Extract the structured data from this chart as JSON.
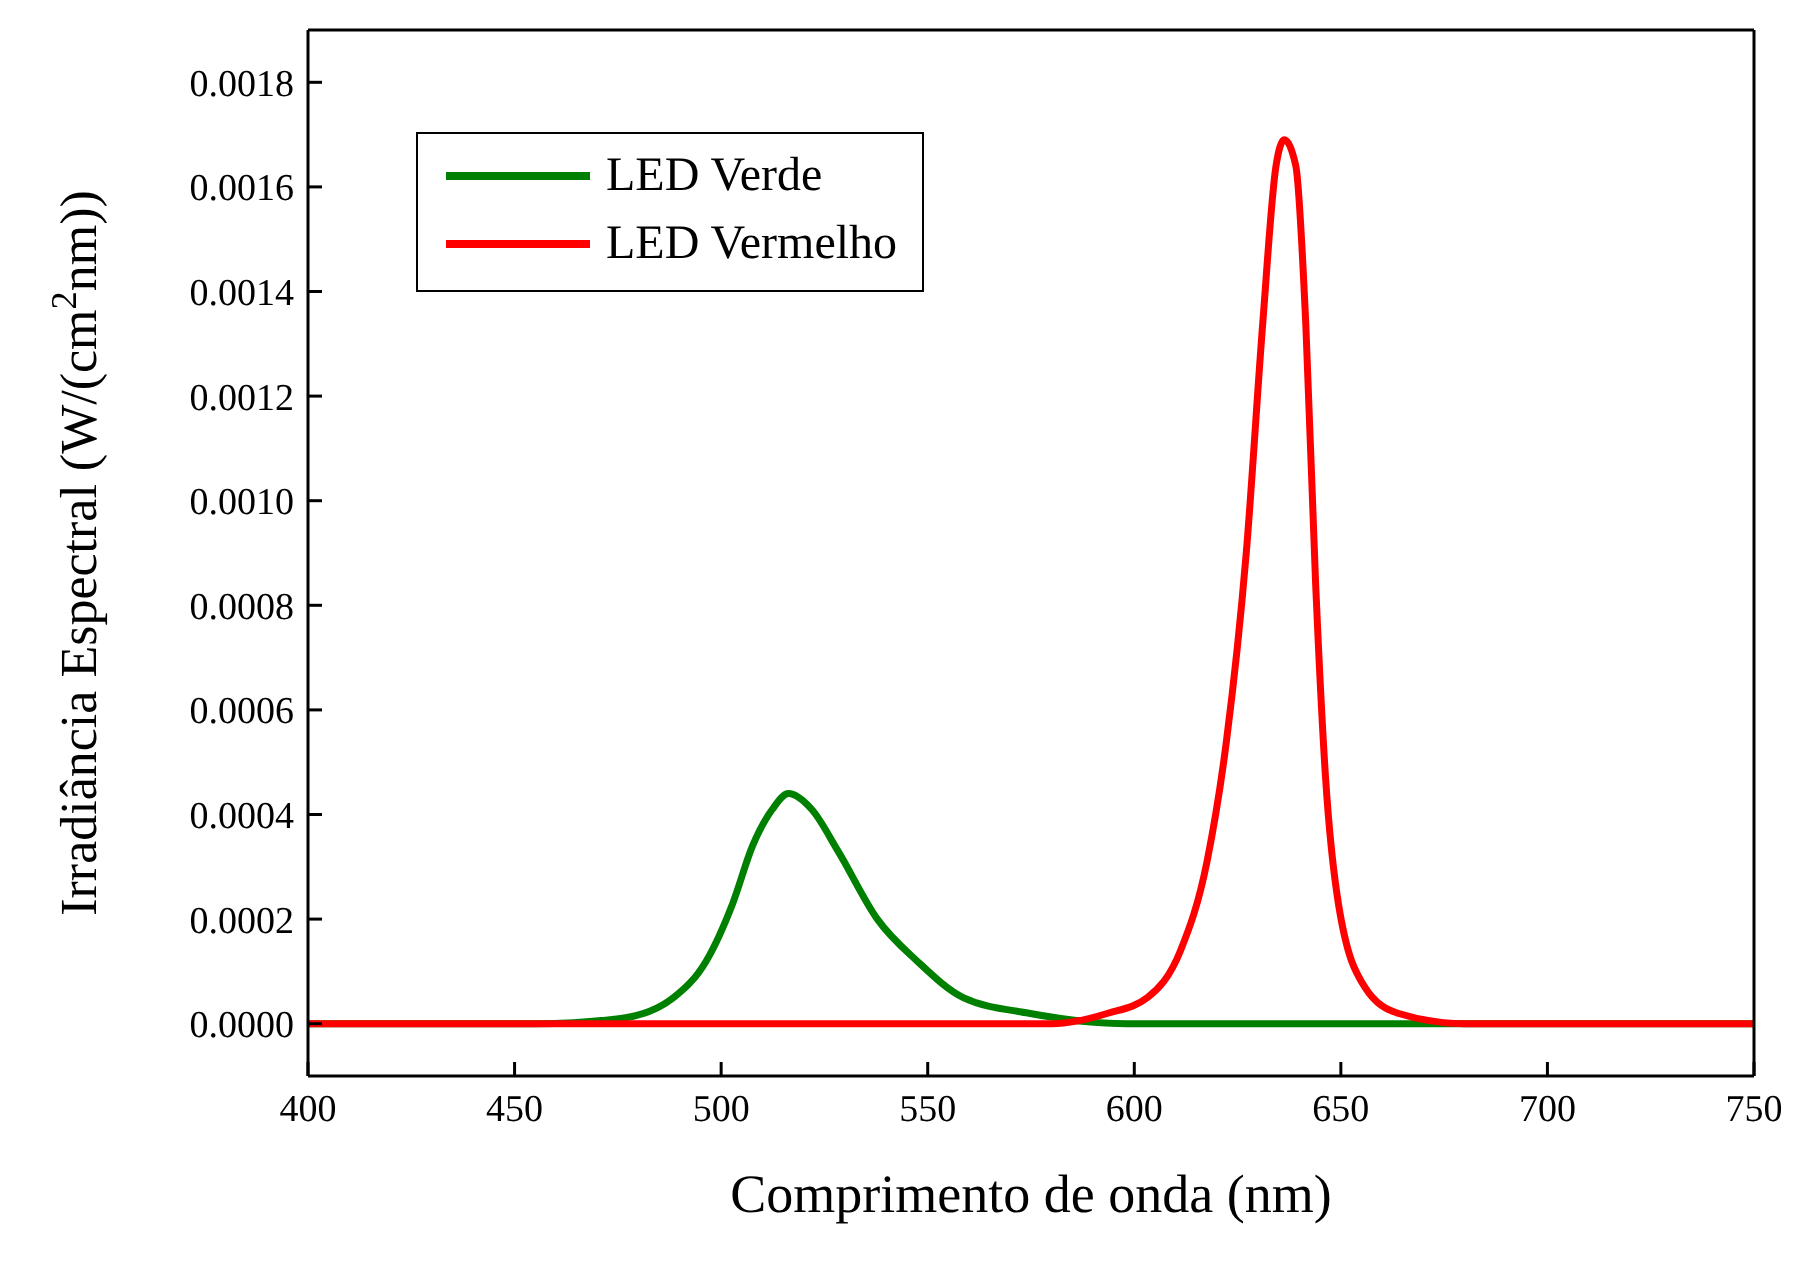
{
  "chart_data": {
    "type": "line",
    "xlabel": "Comprimento de onda (nm)",
    "ylabel": "Irradiância Espectral (W/(cm$^{2}$nm))",
    "xlim": [
      400,
      750
    ],
    "xticks": [
      400,
      450,
      500,
      550,
      600,
      650,
      700,
      750
    ],
    "ylim": [
      -0.0001,
      0.0019
    ],
    "yticks": [
      {
        "value": 0,
        "label": "0.0000"
      },
      {
        "value": 0.0002,
        "label": "0.0002"
      },
      {
        "value": 0.0004,
        "label": "0.0004"
      },
      {
        "value": 0.0006,
        "label": "0.0006"
      },
      {
        "value": 0.0008,
        "label": "0.0008"
      },
      {
        "value": 0.001,
        "label": "0.0010"
      },
      {
        "value": 0.0012,
        "label": "0.0012"
      },
      {
        "value": 0.0014,
        "label": "0.0014"
      },
      {
        "value": 0.0016,
        "label": "0.0016"
      },
      {
        "value": 0.0018,
        "label": "0.0018"
      }
    ],
    "grid": false,
    "legend": "top left",
    "marker": "none",
    "line_style": "solid",
    "series": [
      {
        "name": "LED Verde",
        "color": "#008000",
        "x": [
          400,
          430,
          455,
          475.7,
          488.5,
          496.4,
          502.8,
          507.6,
          512.4,
          516.3,
          521.9,
          528.3,
          537.8,
          547.4,
          558.6,
          574.5,
          598.4,
          630,
          680,
          750
        ],
        "values": [
          0,
          0,
          0,
          1e-05,
          5e-05,
          0.00012,
          0.00023,
          0.00034,
          0.00041,
          0.00044,
          0.00041,
          0.00033,
          0.0002,
          0.00012,
          5e-05,
          2e-05,
          0,
          0,
          0,
          0
        ]
      },
      {
        "name": "LED Vermelho",
        "color": "#ff0000",
        "x": [
          400,
          500,
          560,
          580,
          593.6,
          603.2,
          611.2,
          617.6,
          622.3,
          627.1,
          631.1,
          634.3,
          636.3,
          639.1,
          641.5,
          643.9,
          646.3,
          649.4,
          655.8,
          663.8,
          680,
          700,
          750
        ],
        "values": [
          0,
          0,
          0,
          0,
          2e-05,
          5e-05,
          0.00014,
          0.00031,
          0.00054,
          0.0009,
          0.00134,
          0.00164,
          0.00169,
          0.00164,
          0.00134,
          0.00084,
          0.00047,
          0.00023,
          7e-05,
          2e-05,
          0,
          0,
          0
        ]
      }
    ]
  }
}
